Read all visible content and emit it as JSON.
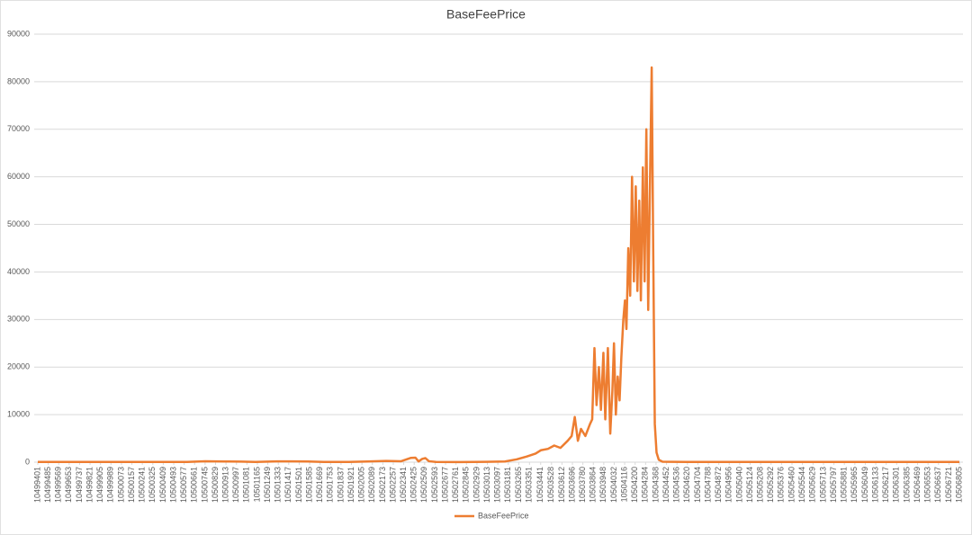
{
  "chart_data": {
    "type": "line",
    "title": "BaseFeePrice",
    "x": [
      10499401,
      10499800,
      10500200,
      10500600,
      10500746,
      10500900,
      10501033,
      10501150,
      10501321,
      10501450,
      10501572,
      10501700,
      10501900,
      10502050,
      10502200,
      10502320,
      10502399,
      10502435,
      10502460,
      10502490,
      10502515,
      10502543,
      10502600,
      10502800,
      10503000,
      10503154,
      10503250,
      10503330,
      10503400,
      10503442,
      10503500,
      10503550,
      10503600,
      10503658,
      10503690,
      10503715,
      10503740,
      10503765,
      10503800,
      10503837,
      10503855,
      10503873,
      10503890,
      10503909,
      10503925,
      10503945,
      10503960,
      10503981,
      10504000,
      10504017,
      10504030,
      10504045,
      10504060,
      10504075,
      10504089,
      10504105,
      10504118,
      10504130,
      10504145,
      10504160,
      10504175,
      10504190,
      10504205,
      10504218,
      10504233,
      10504246,
      10504262,
      10504276,
      10504290,
      10504305,
      10504320,
      10504333,
      10504345,
      10504358,
      10504372,
      10504390,
      10504420,
      10504500,
      10505000,
      10505500,
      10506000,
      10506805
    ],
    "series": [
      {
        "name": "BaseFeePrice",
        "color": "#ED7D31",
        "values": [
          40,
          35,
          40,
          50,
          180,
          150,
          120,
          40,
          160,
          170,
          130,
          40,
          50,
          150,
          250,
          200,
          900,
          950,
          150,
          700,
          850,
          200,
          40,
          30,
          60,
          150,
          600,
          1200,
          1800,
          2500,
          2800,
          3500,
          3000,
          4500,
          5500,
          9500,
          4500,
          7000,
          5500,
          8000,
          9000,
          24000,
          12000,
          20000,
          11000,
          23000,
          9000,
          24000,
          6000,
          15000,
          25000,
          10000,
          18000,
          13000,
          22000,
          30000,
          34000,
          28000,
          45000,
          35000,
          60000,
          38000,
          58000,
          36000,
          55000,
          34000,
          62000,
          38000,
          70000,
          32000,
          60000,
          83000,
          45000,
          8000,
          2000,
          500,
          100,
          60,
          50,
          50,
          50,
          50
        ]
      }
    ],
    "xlim": [
      10499401,
      10506805
    ],
    "xticks": [
      10499401,
      10499485,
      10499569,
      10499653,
      10499737,
      10499821,
      10499905,
      10499989,
      10500073,
      10500157,
      10500241,
      10500325,
      10500409,
      10500493,
      10500577,
      10500661,
      10500745,
      10500829,
      10500913,
      10500997,
      10501081,
      10501165,
      10501249,
      10501333,
      10501417,
      10501501,
      10501585,
      10501669,
      10501753,
      10501837,
      10501921,
      10502005,
      10502089,
      10502173,
      10502257,
      10502341,
      10502425,
      10502509,
      10502593,
      10502677,
      10502761,
      10502845,
      10502929,
      10503013,
      10503097,
      10503181,
      10503265,
      10503351,
      10503441,
      10503528,
      10503612,
      10503696,
      10503780,
      10503864,
      10503948,
      10504032,
      10504116,
      10504200,
      10504284,
      10504368,
      10504452,
      10504536,
      10504620,
      10504704,
      10504788,
      10504872,
      10504956,
      10505040,
      10505124,
      10505208,
      10505292,
      10505376,
      10505460,
      10505544,
      10505629,
      10505713,
      10505797,
      10505881,
      10505965,
      10506049,
      10506133,
      10506217,
      10506301,
      10506385,
      10506469,
      10506553,
      10506637,
      10506721,
      10506805
    ],
    "ylim": [
      0,
      90000
    ],
    "yticks": [
      0,
      10000,
      20000,
      30000,
      40000,
      50000,
      60000,
      70000,
      80000,
      90000
    ],
    "grid": true
  }
}
